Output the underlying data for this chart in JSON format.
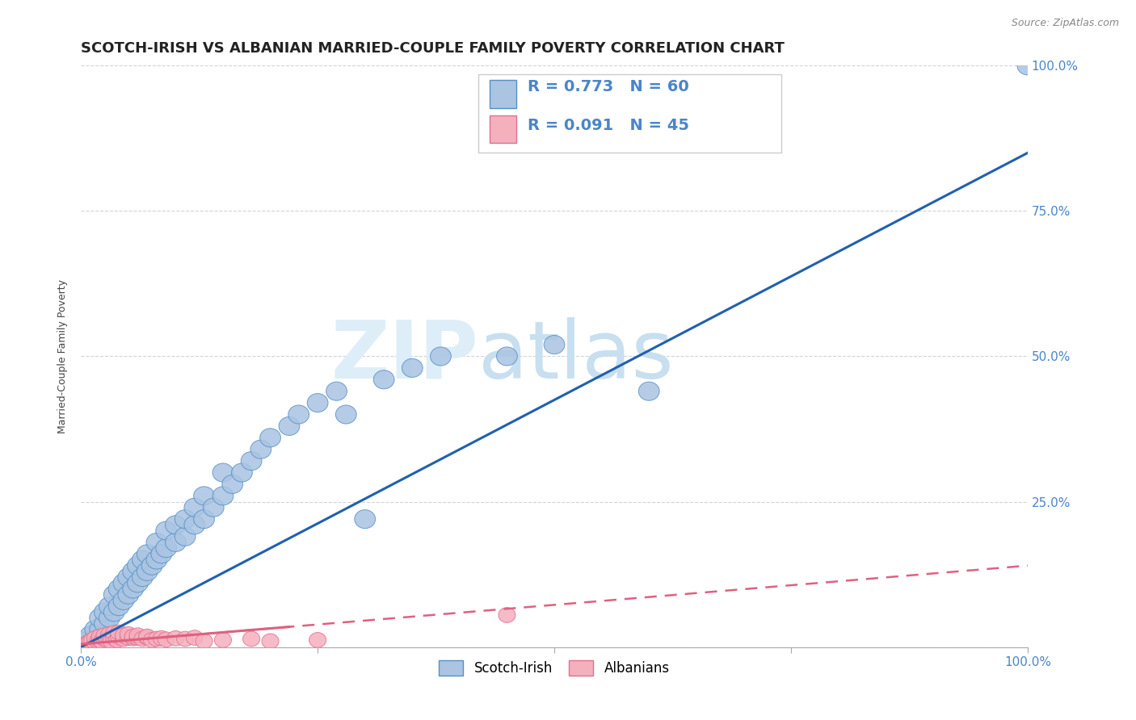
{
  "title": "SCOTCH-IRISH VS ALBANIAN MARRIED-COUPLE FAMILY POVERTY CORRELATION CHART",
  "source": "Source: ZipAtlas.com",
  "ylabel": "Married-Couple Family Poverty",
  "xlim": [
    0,
    1.0
  ],
  "ylim": [
    0,
    1.0
  ],
  "ytick_values": [
    0.0,
    0.25,
    0.5,
    0.75,
    1.0
  ],
  "ytick_labels": [
    "",
    "25.0%",
    "50.0%",
    "75.0%",
    "100.0%"
  ],
  "grid_color": "#c8c8c8",
  "watermark_zip": "ZIP",
  "watermark_atlas": "atlas",
  "scotch_irish_R": 0.773,
  "scotch_irish_N": 60,
  "albanian_R": 0.091,
  "albanian_N": 45,
  "si_color": "#aac4e2",
  "si_edge_color": "#5590c8",
  "si_line_color": "#2060b0",
  "al_color": "#f5b0be",
  "al_edge_color": "#e07090",
  "al_line_color": "#e06080",
  "scotch_irish_scatter": [
    [
      0.005,
      0.01
    ],
    [
      0.01,
      0.02
    ],
    [
      0.015,
      0.03
    ],
    [
      0.02,
      0.03
    ],
    [
      0.02,
      0.05
    ],
    [
      0.025,
      0.04
    ],
    [
      0.025,
      0.06
    ],
    [
      0.03,
      0.05
    ],
    [
      0.03,
      0.07
    ],
    [
      0.035,
      0.06
    ],
    [
      0.035,
      0.09
    ],
    [
      0.04,
      0.07
    ],
    [
      0.04,
      0.1
    ],
    [
      0.045,
      0.08
    ],
    [
      0.045,
      0.11
    ],
    [
      0.05,
      0.09
    ],
    [
      0.05,
      0.12
    ],
    [
      0.055,
      0.1
    ],
    [
      0.055,
      0.13
    ],
    [
      0.06,
      0.11
    ],
    [
      0.06,
      0.14
    ],
    [
      0.065,
      0.12
    ],
    [
      0.065,
      0.15
    ],
    [
      0.07,
      0.13
    ],
    [
      0.07,
      0.16
    ],
    [
      0.075,
      0.14
    ],
    [
      0.08,
      0.15
    ],
    [
      0.08,
      0.18
    ],
    [
      0.085,
      0.16
    ],
    [
      0.09,
      0.17
    ],
    [
      0.09,
      0.2
    ],
    [
      0.1,
      0.18
    ],
    [
      0.1,
      0.21
    ],
    [
      0.11,
      0.19
    ],
    [
      0.11,
      0.22
    ],
    [
      0.12,
      0.21
    ],
    [
      0.12,
      0.24
    ],
    [
      0.13,
      0.22
    ],
    [
      0.13,
      0.26
    ],
    [
      0.14,
      0.24
    ],
    [
      0.15,
      0.26
    ],
    [
      0.15,
      0.3
    ],
    [
      0.16,
      0.28
    ],
    [
      0.17,
      0.3
    ],
    [
      0.18,
      0.32
    ],
    [
      0.19,
      0.34
    ],
    [
      0.2,
      0.36
    ],
    [
      0.22,
      0.38
    ],
    [
      0.23,
      0.4
    ],
    [
      0.25,
      0.42
    ],
    [
      0.27,
      0.44
    ],
    [
      0.28,
      0.4
    ],
    [
      0.3,
      0.22
    ],
    [
      0.32,
      0.46
    ],
    [
      0.35,
      0.48
    ],
    [
      0.38,
      0.5
    ],
    [
      0.45,
      0.5
    ],
    [
      0.5,
      0.52
    ],
    [
      0.6,
      0.44
    ],
    [
      1.0,
      1.0
    ]
  ],
  "albanian_scatter": [
    [
      0.005,
      0.005
    ],
    [
      0.008,
      0.008
    ],
    [
      0.01,
      0.01
    ],
    [
      0.012,
      0.012
    ],
    [
      0.015,
      0.008
    ],
    [
      0.015,
      0.015
    ],
    [
      0.018,
      0.01
    ],
    [
      0.02,
      0.012
    ],
    [
      0.02,
      0.018
    ],
    [
      0.022,
      0.01
    ],
    [
      0.025,
      0.014
    ],
    [
      0.025,
      0.02
    ],
    [
      0.028,
      0.012
    ],
    [
      0.03,
      0.015
    ],
    [
      0.03,
      0.022
    ],
    [
      0.032,
      0.01
    ],
    [
      0.035,
      0.016
    ],
    [
      0.035,
      0.024
    ],
    [
      0.038,
      0.012
    ],
    [
      0.04,
      0.018
    ],
    [
      0.04,
      0.025
    ],
    [
      0.045,
      0.014
    ],
    [
      0.045,
      0.02
    ],
    [
      0.05,
      0.016
    ],
    [
      0.05,
      0.022
    ],
    [
      0.055,
      0.015
    ],
    [
      0.055,
      0.018
    ],
    [
      0.06,
      0.016
    ],
    [
      0.06,
      0.02
    ],
    [
      0.065,
      0.014
    ],
    [
      0.07,
      0.016
    ],
    [
      0.07,
      0.018
    ],
    [
      0.075,
      0.012
    ],
    [
      0.08,
      0.014
    ],
    [
      0.085,
      0.015
    ],
    [
      0.09,
      0.013
    ],
    [
      0.1,
      0.015
    ],
    [
      0.11,
      0.014
    ],
    [
      0.12,
      0.016
    ],
    [
      0.13,
      0.01
    ],
    [
      0.15,
      0.012
    ],
    [
      0.18,
      0.014
    ],
    [
      0.2,
      0.01
    ],
    [
      0.25,
      0.012
    ],
    [
      0.45,
      0.055
    ]
  ],
  "background_color": "#ffffff",
  "title_fontsize": 13,
  "axis_label_fontsize": 9,
  "tick_fontsize": 11,
  "legend_fontsize": 14
}
